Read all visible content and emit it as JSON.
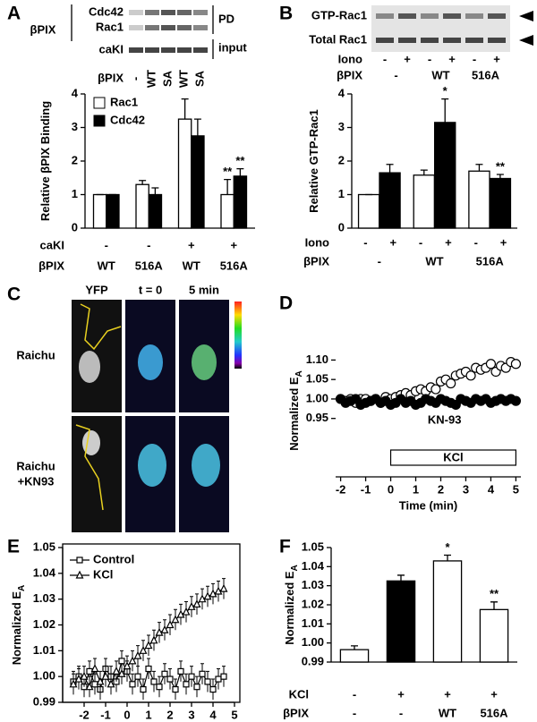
{
  "chart_data": [
    {
      "type": "bar",
      "label": "A",
      "ylabel": "Relative βPIX Binding",
      "ylim": [
        0,
        4
      ],
      "yticks": [
        0,
        1,
        2,
        3,
        4
      ],
      "legend": "upper left",
      "frame": "left-bottom",
      "series": [
        {
          "name": "Rac1",
          "color": "#ffffff",
          "values": [
            1,
            1.3,
            3.25,
            1.0
          ],
          "errors": [
            0,
            0.12,
            0.6,
            0.45
          ],
          "sig_labels": [
            null,
            null,
            null,
            "**"
          ]
        },
        {
          "name": "Cdc42",
          "color": "#000000",
          "values": [
            1,
            1.0,
            2.75,
            1.55
          ],
          "errors": [
            0,
            0.2,
            0.5,
            0.22
          ],
          "sig_labels": [
            null,
            null,
            null,
            "**"
          ]
        }
      ],
      "category_rows": [
        {
          "label": "caKI",
          "labels": [
            "-",
            "-",
            "+",
            "+"
          ]
        },
        {
          "label": "βPIX",
          "labels": [
            "WT",
            "516A",
            "WT",
            "516A"
          ]
        }
      ],
      "blot": {
        "group_label": "βPIX",
        "rows": [
          "Cdc42",
          "Rac1",
          "caKI"
        ],
        "brackets": [
          "PD",
          "input"
        ],
        "lane_rows": [
          {
            "label": "βPIX",
            "lanes": [
              "-",
              "WT",
              "SA",
              "WT",
              "SA"
            ]
          }
        ]
      }
    },
    {
      "type": "bar",
      "label": "B",
      "ylabel": "Relative GTP-Rac1",
      "ylim": [
        0,
        4
      ],
      "yticks": [
        0,
        1,
        2,
        3,
        4
      ],
      "frame": "left-bottom",
      "values": [
        1.0,
        1.65,
        1.58,
        3.15,
        1.7,
        1.48
      ],
      "errors": [
        0,
        0.25,
        0.15,
        0.7,
        0.2,
        0.12
      ],
      "colors": [
        "#ffffff",
        "#000000",
        "#ffffff",
        "#000000",
        "#ffffff",
        "#000000"
      ],
      "sig_labels": [
        null,
        null,
        null,
        "*",
        null,
        "**"
      ],
      "category_rows": [
        {
          "label": "Iono",
          "labels": [
            "-",
            "+",
            "-",
            "+",
            "-",
            "+"
          ]
        },
        {
          "label": "βPIX",
          "labels": [
            "-",
            "WT",
            "516A"
          ]
        }
      ],
      "blot": {
        "rows": [
          "GTP-Rac1",
          "Total Rac1"
        ],
        "lane_rows": [
          {
            "label": "Iono",
            "lanes": [
              "-",
              "+",
              "-",
              "+",
              "-",
              "+"
            ]
          },
          {
            "label": "βPIX",
            "lanes": [
              "-",
              "WT",
              "516A"
            ]
          }
        ]
      }
    },
    {
      "type": "line",
      "label": "D",
      "ylabel": "Normalized E",
      "ylabel_subscript": "A",
      "xlabel": "Time (min)",
      "frame": "bottom",
      "xlim": [
        -2.2,
        5.2
      ],
      "xticks": [
        -2,
        -1,
        0,
        1,
        2,
        3,
        4,
        5
      ],
      "ylim": [
        0.8,
        1.14
      ],
      "yticks": [
        0.95,
        {
          "value": 1,
          "label": "1.00"
        },
        1.05,
        {
          "value": 1.1,
          "label": "1.10"
        }
      ],
      "x": [
        -2,
        -1.8,
        -1.6,
        -1.4,
        -1.2,
        -1,
        -0.8,
        -0.6,
        -0.4,
        -0.2,
        0,
        0.2,
        0.4,
        0.6,
        0.8,
        1,
        1.2,
        1.4,
        1.6,
        1.8,
        2,
        2.2,
        2.4,
        2.6,
        2.8,
        3,
        3.2,
        3.4,
        3.6,
        3.8,
        4,
        4.2,
        4.4,
        4.6,
        4.8,
        5
      ],
      "series": [
        {
          "name": null,
          "color": "#ffffff",
          "marker": "o",
          "values": [
            1.0,
            0.995,
            1.0,
            0.99,
            1.0,
            1.0,
            0.995,
            1.0,
            0.99,
            1.005,
            1.0,
            1.005,
            1.01,
            1.015,
            1.01,
            1.02,
            1.025,
            1.02,
            1.03,
            1.025,
            1.045,
            1.05,
            1.04,
            1.06,
            1.065,
            1.07,
            1.06,
            1.08,
            1.075,
            1.08,
            1.09,
            1.07,
            1.085,
            1.08,
            1.095,
            1.09
          ]
        },
        {
          "name": "KN-93",
          "color": "#000000",
          "marker": "o",
          "values": [
            1.0,
            0.99,
            0.995,
            1.0,
            0.985,
            0.99,
            0.995,
            1.0,
            0.99,
            0.995,
            0.985,
            0.99,
            1.0,
            0.99,
            0.995,
            0.985,
            0.99,
            1.0,
            0.995,
            0.99,
            1.0,
            0.995,
            0.99,
            0.985,
            1.0,
            0.995,
            0.99,
            1.0,
            0.995,
            1.0,
            0.99,
            0.995,
            1.0,
            0.995,
            1.0,
            0.995
          ]
        }
      ],
      "annotations": [
        {
          "text": "KCl",
          "x": [
            0,
            5
          ]
        }
      ]
    },
    {
      "type": "line",
      "label": "E",
      "ylabel": "Normalized E",
      "ylabel_subscript": "A",
      "xlabel": "Time (min)",
      "frame": "box",
      "legend": "upper left",
      "xlim": [
        -3,
        5
      ],
      "xticks": [
        -2,
        -1,
        0,
        1,
        2,
        3,
        4,
        5
      ],
      "ylim": [
        0.99,
        1.05
      ],
      "yticks": [
        0.99,
        {
          "value": 1,
          "label": "1.00"
        },
        1.01,
        1.02,
        1.03,
        1.04,
        1.05
      ],
      "x": [
        -2.5,
        -2.25,
        -2,
        -1.75,
        -1.5,
        -1.25,
        -1,
        -0.75,
        -0.5,
        -0.25,
        0,
        0.25,
        0.5,
        0.75,
        1,
        1.25,
        1.5,
        1.75,
        2,
        2.25,
        2.5,
        2.75,
        3,
        3.25,
        3.5,
        3.75,
        4,
        4.25,
        4.5
      ],
      "series": [
        {
          "name": "Control",
          "color": "#ffffff",
          "marker": "s",
          "values": [
            0.998,
            1.0,
            0.996,
            1.002,
            0.997,
            0.995,
            1.003,
            1.0,
            0.998,
            1.006,
            1.002,
            0.997,
            1.0,
            0.995,
            1.003,
            0.998,
            0.996,
            1.001,
            0.999,
            0.995,
            1.002,
            0.997,
            1.0,
            0.996,
            1.001,
            0.998,
            0.995,
            0.999,
            1.0
          ],
          "errors": [
            0.004,
            0.004,
            0.004,
            0.004,
            0.004,
            0.004,
            0.004,
            0.004,
            0.004,
            0.004,
            0.004,
            0.004,
            0.004,
            0.004,
            0.004,
            0.004,
            0.004,
            0.004,
            0.004,
            0.004,
            0.004,
            0.004,
            0.004,
            0.004,
            0.004,
            0.004,
            0.004,
            0.004,
            0.004
          ]
        },
        {
          "name": "KCl",
          "color": "#ffffff",
          "marker": "^",
          "values": [
            0.997,
            0.999,
            1.0,
            0.996,
            1.003,
            0.998,
            1.0,
            0.997,
            1.002,
            1.001,
            1.004,
            1.006,
            1.008,
            1.01,
            1.012,
            1.014,
            1.017,
            1.018,
            1.02,
            1.022,
            1.024,
            1.025,
            1.027,
            1.028,
            1.03,
            1.031,
            1.032,
            1.033,
            1.034
          ],
          "errors": [
            0.004,
            0.004,
            0.004,
            0.004,
            0.004,
            0.004,
            0.004,
            0.004,
            0.004,
            0.004,
            0.004,
            0.004,
            0.004,
            0.004,
            0.004,
            0.004,
            0.004,
            0.004,
            0.004,
            0.004,
            0.004,
            0.004,
            0.004,
            0.004,
            0.004,
            0.004,
            0.004,
            0.004,
            0.004
          ]
        }
      ]
    },
    {
      "type": "bar",
      "label": "F",
      "ylabel": "Normalized E",
      "ylabel_subscript": "A",
      "frame": "left-bottom",
      "ylim": [
        0.99,
        1.05
      ],
      "yticks": [
        0.99,
        {
          "value": 1,
          "label": "1.00"
        },
        1.01,
        1.02,
        1.03,
        1.04,
        1.05
      ],
      "values": [
        0.9965,
        1.0325,
        1.043,
        1.0175
      ],
      "errors": [
        0.002,
        0.003,
        0.003,
        0.004
      ],
      "colors": [
        "#ffffff",
        "#000000",
        "#ffffff",
        "#ffffff"
      ],
      "sig_labels": [
        null,
        null,
        "*",
        "**"
      ],
      "category_rows": [
        {
          "label": "KCl",
          "labels": [
            "-",
            "+",
            "+",
            "+"
          ]
        },
        {
          "label": "βPIX",
          "labels": [
            "-",
            "-",
            "WT",
            "516A"
          ]
        }
      ]
    }
  ],
  "panel_c": {
    "label": "C",
    "columns": [
      "YFP",
      "t = 0",
      "5 min"
    ],
    "rows": [
      [
        "Raichu"
      ],
      [
        "Raichu",
        "+KN93"
      ]
    ]
  }
}
